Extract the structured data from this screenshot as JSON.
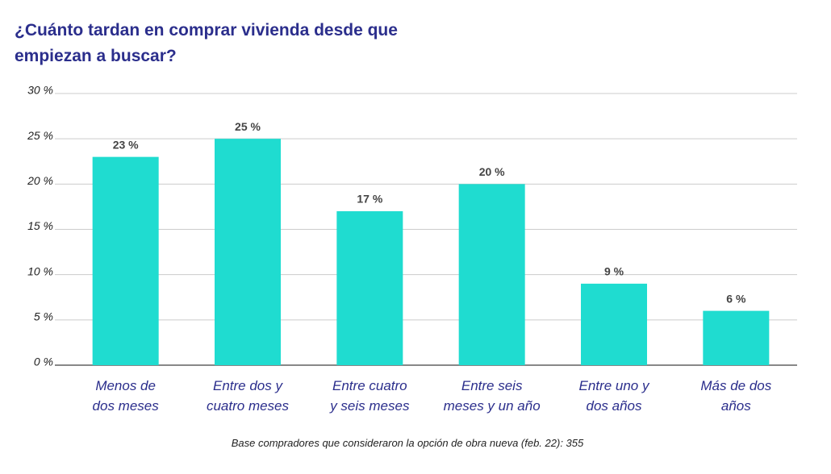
{
  "chart_data": {
    "type": "bar",
    "title": "¿Cuánto tardan en comprar vivienda desde que\nempiezan a buscar?",
    "categories": [
      "Menos de\ndos meses",
      "Entre dos y\ncuatro meses",
      "Entre cuatro\ny seis meses",
      "Entre seis\nmeses y un año",
      "Entre uno y\ndos años",
      "Más de dos\naños"
    ],
    "values": [
      23,
      25,
      17,
      20,
      9,
      6
    ],
    "value_labels": [
      "23 %",
      "25 %",
      "17 %",
      "20 %",
      "9 %",
      "6 %"
    ],
    "color": "#1fdcd0",
    "ylim": [
      0,
      30
    ],
    "yticks": [
      {
        "value": 0,
        "label": "0 %"
      },
      {
        "value": 5,
        "label": "5 %"
      },
      {
        "value": 10,
        "label": "10 %"
      },
      {
        "value": 15,
        "label": "15 %"
      },
      {
        "value": 20,
        "label": "20 %"
      },
      {
        "value": 25,
        "label": "25 %"
      },
      {
        "value": 30,
        "label": "30 %"
      }
    ],
    "grid": true,
    "footnote": "Base compradores que consideraron la opción de obra nueva (feb. 22): 355"
  }
}
